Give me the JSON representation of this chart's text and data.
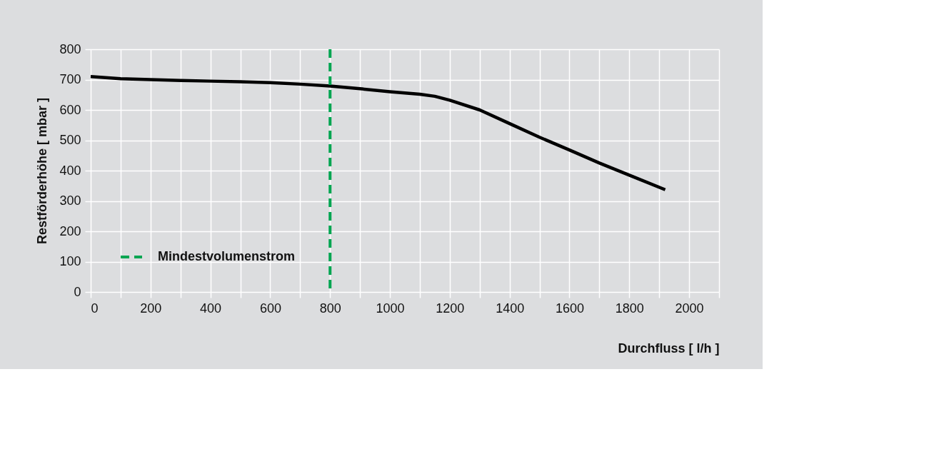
{
  "chart_data": {
    "type": "line",
    "xlabel": "Durchfluss [ l/h ]",
    "ylabel": "Restförderhöhe [ mbar ]",
    "x": [
      0,
      100,
      200,
      300,
      400,
      500,
      600,
      700,
      800,
      900,
      1000,
      1100,
      1150,
      1200,
      1300,
      1400,
      1500,
      1600,
      1700,
      1800,
      1920
    ],
    "series": [
      {
        "color": "#000000",
        "values": [
          710,
          703,
          700,
          697,
          695,
          693,
          690,
          685,
          679,
          670,
          660,
          652,
          645,
          632,
          600,
          555,
          510,
          468,
          425,
          385,
          337
        ]
      }
    ],
    "xlim": [
      0,
      2100
    ],
    "xticks": [
      0,
      {
        "value": 100,
        "label": null
      },
      200,
      {
        "value": 300,
        "label": null
      },
      400,
      {
        "value": 500,
        "label": null
      },
      600,
      {
        "value": 700,
        "label": null
      },
      800,
      {
        "value": 900,
        "label": null
      },
      1000,
      {
        "value": 1100,
        "label": null
      },
      1200,
      {
        "value": 1300,
        "label": null
      },
      1400,
      {
        "value": 1500,
        "label": null
      },
      1600,
      {
        "value": 1700,
        "label": null
      },
      1800,
      {
        "value": 1900,
        "label": null
      },
      2000,
      {
        "value": 2100,
        "label": null
      }
    ],
    "ylim": [
      0,
      800
    ],
    "yticks": [
      0,
      100,
      200,
      300,
      400,
      500,
      600,
      700,
      800
    ],
    "ref_lines": [
      {
        "axis": "x",
        "value": 800,
        "label": "Mindestvolumenstrom",
        "color": "#00a551",
        "line_style": "dashed"
      }
    ],
    "grid": true,
    "legend": "bottom left",
    "marker": "none",
    "line_style": "solid"
  }
}
